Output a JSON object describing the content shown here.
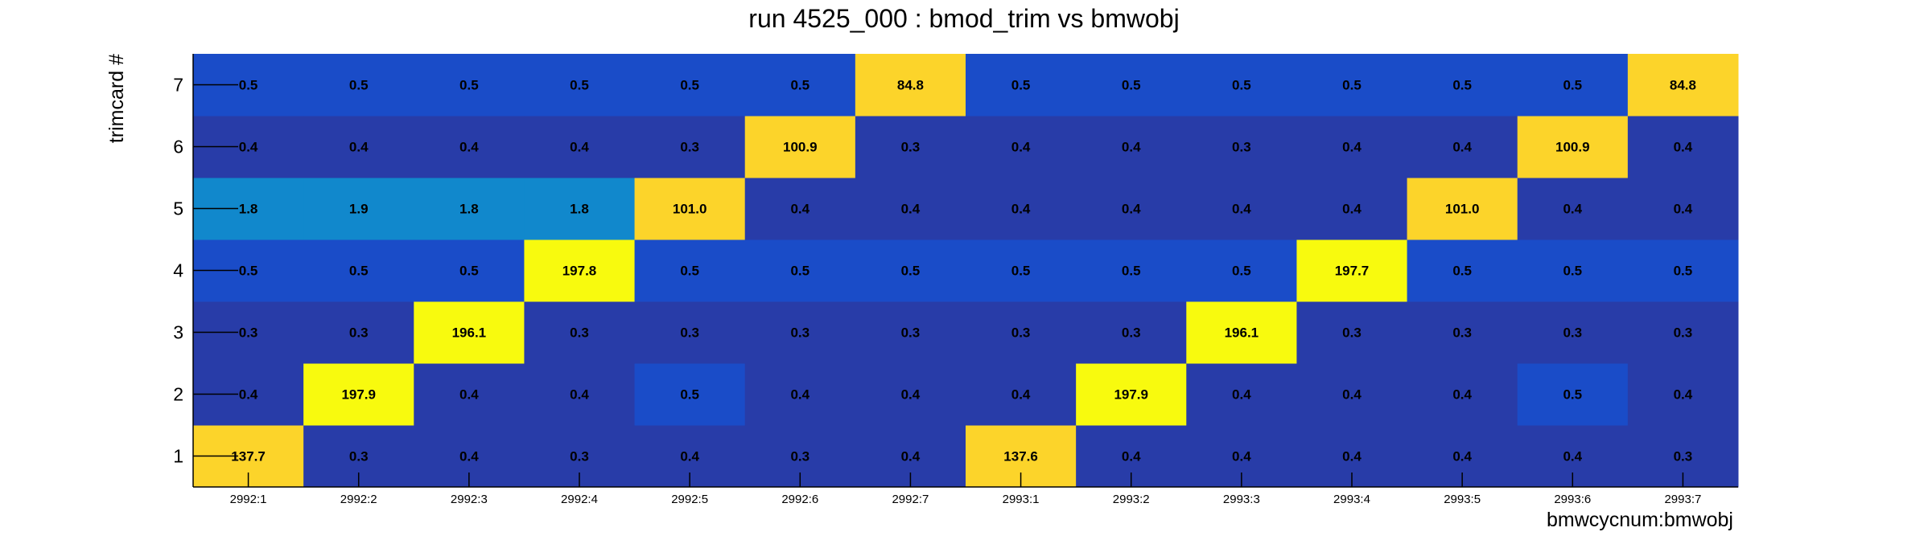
{
  "chart_data": {
    "type": "heatmap",
    "title": "run 4525_000 : bmod_trim vs bmwobj",
    "xlabel": "bmwcycnum:bmwobj",
    "ylabel": "trimcard #",
    "x_categories": [
      "2992:1",
      "2992:2",
      "2992:3",
      "2992:4",
      "2992:5",
      "2992:6",
      "2992:7",
      "2993:1",
      "2993:2",
      "2993:3",
      "2993:4",
      "2993:5",
      "2993:6",
      "2993:7"
    ],
    "y_categories": [
      "1",
      "2",
      "3",
      "4",
      "5",
      "6",
      "7"
    ],
    "values": [
      [
        137.7,
        0.3,
        0.4,
        0.3,
        0.4,
        0.3,
        0.4,
        137.6,
        0.4,
        0.4,
        0.4,
        0.4,
        0.4,
        0.3
      ],
      [
        0.4,
        197.9,
        0.4,
        0.4,
        0.5,
        0.4,
        0.4,
        0.4,
        197.9,
        0.4,
        0.4,
        0.4,
        0.5,
        0.4
      ],
      [
        0.3,
        0.3,
        196.1,
        0.3,
        0.3,
        0.3,
        0.3,
        0.3,
        0.3,
        196.1,
        0.3,
        0.3,
        0.3,
        0.3
      ],
      [
        0.5,
        0.5,
        0.5,
        197.8,
        0.5,
        0.5,
        0.5,
        0.5,
        0.5,
        0.5,
        197.7,
        0.5,
        0.5,
        0.5
      ],
      [
        1.8,
        1.9,
        1.8,
        1.8,
        101.0,
        0.4,
        0.4,
        0.4,
        0.4,
        0.4,
        0.4,
        101.0,
        0.4,
        0.4
      ],
      [
        0.4,
        0.4,
        0.4,
        0.4,
        0.3,
        100.9,
        0.3,
        0.4,
        0.4,
        0.3,
        0.4,
        0.4,
        100.9,
        0.4
      ],
      [
        0.5,
        0.5,
        0.5,
        0.5,
        0.5,
        0.5,
        84.8,
        0.5,
        0.5,
        0.5,
        0.5,
        0.5,
        0.5,
        84.8
      ]
    ],
    "value_format": "one-decimal",
    "colormap": "kBird-like (blue to yellow)",
    "colors": {
      "low": "#283ca8",
      "low_mid": "#1a4cc8",
      "mid": "#1188cc",
      "high_mid": "#fcd42a",
      "high": "#f8fa0e",
      "axis": "#000000"
    },
    "grid": false,
    "legend": "none"
  }
}
